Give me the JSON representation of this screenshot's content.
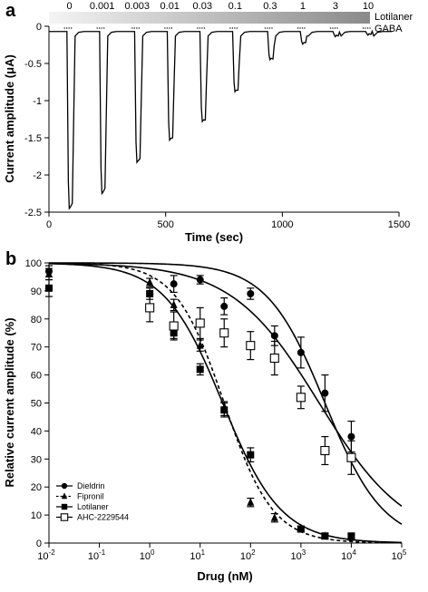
{
  "figure": {
    "panel_a_label": "a",
    "panel_b_label": "b"
  },
  "chart_data": [
    {
      "type": "line",
      "panel": "a",
      "xlabel": "Time (sec)",
      "ylabel": "Current amplitude (μA)",
      "xlim": [
        0,
        1500
      ],
      "ylim": [
        -2.5,
        0
      ],
      "x_ticks": [
        0,
        500,
        1000,
        1500
      ],
      "x_tick_labels": [
        "0",
        "500",
        "1000",
        "1500"
      ],
      "y_ticks": [
        0,
        -0.5,
        -1,
        -1.5,
        -2,
        -2.5
      ],
      "y_tick_labels": [
        "0",
        "-0.5",
        "-1",
        "-1.5",
        "-2",
        "-2.5"
      ],
      "bar_labels": {
        "drug": "Lotilaner",
        "agonist": "GABA"
      },
      "applications": [
        {
          "concentration": "0",
          "time": 80,
          "peak": -2.45,
          "end": -2.38
        },
        {
          "concentration": "0.001",
          "time": 220,
          "peak": -2.25,
          "end": -2.18
        },
        {
          "concentration": "0.003",
          "time": 370,
          "peak": -1.83,
          "end": -1.78
        },
        {
          "concentration": "0.01",
          "time": 510,
          "peak": -1.53,
          "end": -1.5
        },
        {
          "concentration": "0.03",
          "time": 650,
          "peak": -1.28,
          "end": -1.26
        },
        {
          "concentration": "0.1",
          "time": 790,
          "peak": -0.88,
          "end": -0.86
        },
        {
          "concentration": "0.3",
          "time": 940,
          "peak": -0.45,
          "end": -0.44
        },
        {
          "concentration": "1",
          "time": 1080,
          "peak": -0.24,
          "end": -0.22
        },
        {
          "concentration": "3",
          "time": 1220,
          "peak": -0.14,
          "end": -0.13
        },
        {
          "concentration": "10",
          "time": 1360,
          "peak": -0.12,
          "end": -0.11
        }
      ],
      "baseline": -0.07
    },
    {
      "type": "scatter",
      "panel": "b",
      "xlabel": "Drug (nM)",
      "ylabel": "Relative current amplitude (%)",
      "xscale": "log",
      "xlim": [
        0.01,
        100000
      ],
      "ylim": [
        0,
        100
      ],
      "x_ticks": [
        0.01,
        0.1,
        1,
        10,
        100,
        1000,
        10000,
        100000
      ],
      "x_tick_labels": [
        [
          "10",
          "-2"
        ],
        [
          "10",
          "-1"
        ],
        [
          "10",
          "0"
        ],
        [
          "10",
          "1"
        ],
        [
          "10",
          "2"
        ],
        [
          "10",
          "3"
        ],
        [
          "10",
          "4"
        ],
        [
          "10",
          "5"
        ]
      ],
      "y_ticks": [
        0,
        10,
        20,
        30,
        40,
        50,
        60,
        70,
        80,
        90,
        100
      ],
      "y_tick_labels": [
        "0",
        "10",
        "20",
        "30",
        "40",
        "50",
        "60",
        "70",
        "80",
        "90",
        "100"
      ],
      "legend_position": "bottom-left",
      "series": [
        {
          "name": "Dieldrin",
          "marker": "circle",
          "line": "solid",
          "fit": {
            "ic50": 3000,
            "hill": 0.75
          },
          "points": [
            {
              "x": 0.01,
              "y": 97,
              "err": 2
            },
            {
              "x": 3,
              "y": 92.5,
              "err": 3
            },
            {
              "x": 10,
              "y": 94,
              "err": 1.5
            },
            {
              "x": 30,
              "y": 84.5,
              "err": 3
            },
            {
              "x": 100,
              "y": 89,
              "err": 2
            },
            {
              "x": 300,
              "y": 74,
              "err": 3.5
            },
            {
              "x": 1000,
              "y": 68,
              "err": 5.5
            },
            {
              "x": 3000,
              "y": 53.5,
              "err": 6.5
            },
            {
              "x": 10000,
              "y": 38,
              "err": 5.5
            }
          ]
        },
        {
          "name": "Fipronil",
          "marker": "triangle",
          "line": "dashed",
          "fit": {
            "ic50": 30,
            "hill": 0.9
          },
          "points": [
            {
              "x": 0.01,
              "y": 96,
              "err": 2
            },
            {
              "x": 1,
              "y": 93,
              "err": 1.5
            },
            {
              "x": 3,
              "y": 85,
              "err": 2
            },
            {
              "x": 10,
              "y": 70.5,
              "err": 2
            },
            {
              "x": 30,
              "y": 48,
              "err": 2.5
            },
            {
              "x": 100,
              "y": 14.5,
              "err": 1.5
            },
            {
              "x": 300,
              "y": 9,
              "err": 1.5
            },
            {
              "x": 1000,
              "y": 5,
              "err": 1
            },
            {
              "x": 3000,
              "y": 2.5,
              "err": 1
            },
            {
              "x": 10000,
              "y": 2,
              "err": 1
            }
          ]
        },
        {
          "name": "Lotilaner",
          "marker": "square",
          "line": "solid",
          "fit": {
            "ic50": 28,
            "hill": 0.75
          },
          "points": [
            {
              "x": 0.01,
              "y": 91,
              "err": 3
            },
            {
              "x": 1,
              "y": 89,
              "err": 2
            },
            {
              "x": 3,
              "y": 75,
              "err": 2
            },
            {
              "x": 10,
              "y": 62,
              "err": 2
            },
            {
              "x": 30,
              "y": 47.5,
              "err": 2.5
            },
            {
              "x": 100,
              "y": 31.5,
              "err": 2.5
            },
            {
              "x": 1000,
              "y": 5,
              "err": 1
            },
            {
              "x": 3000,
              "y": 2.5,
              "err": 1
            },
            {
              "x": 10000,
              "y": 2.5,
              "err": 1
            }
          ]
        },
        {
          "name": "AHC-2229544",
          "marker": "open-square",
          "line": "solid",
          "fit": {
            "ic50": 2300,
            "hill": 0.5
          },
          "points": [
            {
              "x": 1,
              "y": 84,
              "err": 5
            },
            {
              "x": 3,
              "y": 77.5,
              "err": 5
            },
            {
              "x": 10,
              "y": 78.5,
              "err": 5.5
            },
            {
              "x": 30,
              "y": 75,
              "err": 5
            },
            {
              "x": 100,
              "y": 70.5,
              "err": 5
            },
            {
              "x": 300,
              "y": 66,
              "err": 6
            },
            {
              "x": 1000,
              "y": 52,
              "err": 4
            },
            {
              "x": 3000,
              "y": 33,
              "err": 5
            },
            {
              "x": 10000,
              "y": 30.5,
              "err": 6
            }
          ]
        }
      ]
    }
  ]
}
